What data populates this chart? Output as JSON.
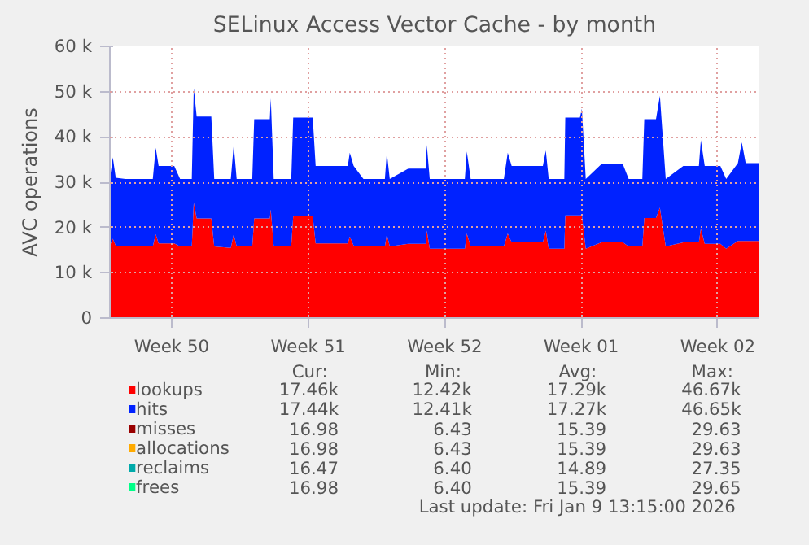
{
  "chart_data": {
    "type": "area",
    "stacked": true,
    "title": "SELinux Access Vector Cache - by month",
    "ylabel": "AVC operations",
    "x": [
      "2025-12-08T08:00",
      "2025-12-08T11:36",
      "2025-12-08T15:12",
      "2025-12-09T03:12",
      "2025-12-10T12:48",
      "2025-12-10T16:24",
      "2025-12-10T20:00",
      "2025-12-11T15:12",
      "2025-12-11T22:24",
      "2025-12-12T12:48",
      "2025-12-12T15:12",
      "2025-12-12T18:48",
      "2025-12-13T12:48",
      "2025-12-13T16:24",
      "2025-12-14T12:48",
      "2025-12-14T16:24",
      "2025-12-14T20:00",
      "2025-12-15T15:12",
      "2025-12-15T17:36",
      "2025-12-16T12:48",
      "2025-12-16T14:00",
      "2025-12-16T17:36",
      "2025-12-17T15:12",
      "2025-12-17T17:36",
      "2025-12-18T17:36",
      "2025-12-18T21:12",
      "2025-12-19T20:00",
      "2025-12-20T12:48",
      "2025-12-20T15:12",
      "2025-12-20T20:00",
      "2025-12-21T08:00",
      "2025-12-22T10:24",
      "2025-12-22T12:48",
      "2025-12-22T16:24",
      "2025-12-23T15:12",
      "2025-12-24T12:48",
      "2025-12-24T14:00",
      "2025-12-24T17:36",
      "2025-12-26T12:48",
      "2025-12-26T15:12",
      "2025-12-26T20:00",
      "2025-12-28T12:48",
      "2025-12-28T17:36",
      "2025-12-28T22:24",
      "2025-12-30T12:48",
      "2025-12-30T16:24",
      "2025-12-30T20:00",
      "2025-12-31T15:12",
      "2025-12-31T16:24",
      "2026-01-01T10:24",
      "2026-01-01T12:48",
      "2026-01-01T17:36",
      "2026-01-02T12:48",
      "2026-01-03T15:12",
      "2026-01-03T22:24",
      "2026-01-04T15:12",
      "2026-01-04T17:36",
      "2026-01-05T08:00",
      "2026-01-05T12:48",
      "2026-01-05T20:00",
      "2026-01-06T17:36",
      "2026-01-07T12:48",
      "2026-01-07T15:12",
      "2026-01-07T20:00",
      "2026-01-08T15:12",
      "2026-01-08T22:24",
      "2026-01-09T12:48",
      "2026-01-09T17:36",
      "2026-01-09T22:24",
      "2026-01-10T15:12"
    ],
    "xlim": [
      "2025-12-08T08:00",
      "2026-01-10T15:12"
    ],
    "xticks": [
      {
        "value": "2025-12-11T12:00",
        "label": "Week 50"
      },
      {
        "value": "2025-12-18T12:00",
        "label": "Week 51"
      },
      {
        "value": "2025-12-25T12:00",
        "label": "Week 52"
      },
      {
        "value": "2026-01-01T12:00",
        "label": "Week 01"
      },
      {
        "value": "2026-01-08T12:00",
        "label": "Week 02"
      }
    ],
    "ylim": [
      0,
      60000
    ],
    "yticks": [
      0,
      {
        "value": 10000,
        "label": "10 k"
      },
      {
        "value": 20000,
        "label": "20 k"
      },
      {
        "value": 30000,
        "label": "30 k"
      },
      {
        "value": 40000,
        "label": "40 k"
      },
      {
        "value": 50000,
        "label": "50 k"
      },
      {
        "value": 60000,
        "label": "60 k"
      }
    ],
    "grid": true,
    "legend": "bottom",
    "series": [
      {
        "name": "lookups",
        "color": "#ff0000",
        "values": [
          16000,
          17500,
          16000,
          15800,
          15800,
          18500,
          16500,
          16500,
          15800,
          15800,
          25500,
          22000,
          22000,
          15800,
          15500,
          18500,
          15800,
          15800,
          22000,
          22000,
          24000,
          15800,
          16000,
          22500,
          22500,
          16500,
          16500,
          16500,
          18000,
          16000,
          15800,
          15800,
          18500,
          15800,
          16400,
          16400,
          19300,
          15300,
          15300,
          18700,
          15800,
          15800,
          18700,
          16700,
          16700,
          19300,
          15300,
          15300,
          22700,
          22700,
          22700,
          15300,
          16700,
          16700,
          15800,
          15800,
          22100,
          22100,
          24400,
          15800,
          16700,
          16700,
          19800,
          16400,
          16400,
          15300,
          17000,
          17000,
          17000,
          17000
        ]
      },
      {
        "name": "hits",
        "color": "#0022ff",
        "values": [
          14700,
          18000,
          15000,
          14900,
          14900,
          19100,
          17100,
          17100,
          14900,
          14900,
          25300,
          22500,
          22500,
          14900,
          15200,
          19700,
          14900,
          14900,
          21900,
          21900,
          24500,
          14900,
          14700,
          21800,
          21800,
          17100,
          17100,
          17100,
          18500,
          17600,
          14900,
          14900,
          18000,
          14900,
          16600,
          16600,
          18900,
          15400,
          15400,
          18100,
          14900,
          14900,
          17800,
          16900,
          16900,
          17700,
          15400,
          15400,
          21600,
          21600,
          23500,
          15400,
          17300,
          17300,
          14900,
          14900,
          21800,
          21800,
          24700,
          14900,
          16900,
          16900,
          19500,
          17200,
          17200,
          15400,
          17200,
          21800,
          17200,
          17200
        ]
      },
      {
        "name": "misses",
        "color": "#990000",
        "values": [
          null,
          null,
          null,
          null,
          null,
          null,
          null,
          null,
          null,
          null,
          null,
          null,
          null,
          null,
          null,
          null,
          null,
          null,
          null,
          null,
          null,
          null,
          null,
          null,
          null,
          null,
          null,
          null,
          null,
          null,
          null,
          null,
          null,
          null,
          null,
          null,
          null,
          null,
          null,
          null,
          null,
          null,
          null,
          null,
          null,
          null,
          null,
          null,
          null,
          null,
          null,
          null,
          null,
          null,
          null,
          null,
          null,
          null,
          null,
          null,
          null,
          null,
          null,
          null,
          null,
          null,
          null,
          null,
          null,
          null
        ]
      },
      {
        "name": "allocations",
        "color": "#ffaa00",
        "values": [
          null,
          null,
          null,
          null,
          null,
          null,
          null,
          null,
          null,
          null,
          null,
          null,
          null,
          null,
          null,
          null,
          null,
          null,
          null,
          null,
          null,
          null,
          null,
          null,
          null,
          null,
          null,
          null,
          null,
          null,
          null,
          null,
          null,
          null,
          null,
          null,
          null,
          null,
          null,
          null,
          null,
          null,
          null,
          null,
          null,
          null,
          null,
          null,
          null,
          null,
          null,
          null,
          null,
          null,
          null,
          null,
          null,
          null,
          null,
          null,
          null,
          null,
          null,
          null,
          null,
          null,
          null,
          null,
          null,
          null
        ]
      },
      {
        "name": "reclaims",
        "color": "#00aaaa",
        "values": [
          null,
          null,
          null,
          null,
          null,
          null,
          null,
          null,
          null,
          null,
          null,
          null,
          null,
          null,
          null,
          null,
          null,
          null,
          null,
          null,
          null,
          null,
          null,
          null,
          null,
          null,
          null,
          null,
          null,
          null,
          null,
          null,
          null,
          null,
          null,
          null,
          null,
          null,
          null,
          null,
          null,
          null,
          null,
          null,
          null,
          null,
          null,
          null,
          null,
          null,
          null,
          null,
          null,
          null,
          null,
          null,
          null,
          null,
          null,
          null,
          null,
          null,
          null,
          null,
          null,
          null,
          null,
          null,
          null,
          null
        ]
      },
      {
        "name": "frees",
        "color": "#00ff88",
        "values": [
          null,
          null,
          null,
          null,
          null,
          null,
          null,
          null,
          null,
          null,
          null,
          null,
          null,
          null,
          null,
          null,
          null,
          null,
          null,
          null,
          null,
          null,
          null,
          null,
          null,
          null,
          null,
          null,
          null,
          null,
          null,
          null,
          null,
          null,
          null,
          null,
          null,
          null,
          null,
          null,
          null,
          null,
          null,
          null,
          null,
          null,
          null,
          null,
          null,
          null,
          null,
          null,
          null,
          null,
          null,
          null,
          null,
          null,
          null,
          null,
          null,
          null,
          null,
          null,
          null,
          null,
          null,
          null,
          null,
          null
        ]
      }
    ],
    "annotations": [
      "Cur:",
      "Min:",
      "Avg:",
      "Max:",
      "17.46k",
      "12.42k",
      "17.29k",
      "46.67k",
      "17.44k",
      "12.41k",
      "17.27k",
      "46.65k",
      "16.98",
      "6.43",
      "15.39",
      "29.63",
      "16.98",
      "6.43",
      "15.39",
      "29.63",
      "16.47",
      "6.40",
      "14.89",
      "27.35",
      "16.98",
      "6.40",
      "15.39",
      "29.65",
      "Last update: Fri Jan  9 13:15:00 2026"
    ]
  }
}
